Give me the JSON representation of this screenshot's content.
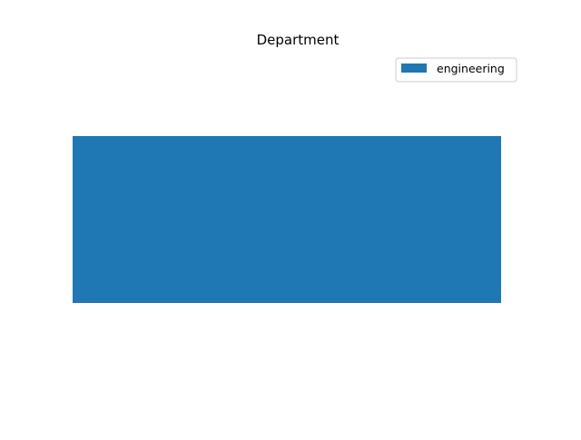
{
  "chart_data": {
    "type": "bar",
    "orientation": "horizontal",
    "stacked": true,
    "title": "Department",
    "categories": [
      ""
    ],
    "series": [
      {
        "name": "engineering",
        "values": [
          1
        ],
        "color": "#1f77b4"
      }
    ],
    "xlim": [
      0,
      1
    ],
    "axes_visible": false,
    "grid": false,
    "legend_position": "upper right"
  }
}
